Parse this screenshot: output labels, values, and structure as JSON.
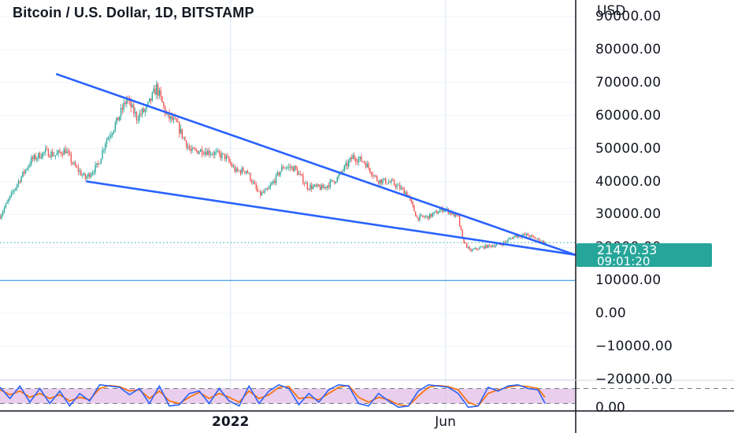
{
  "header": {
    "title": "Bitcoin / U.S. Dollar, 1D, BITSTAMP"
  },
  "axis": {
    "unit": "USD"
  },
  "last_price": {
    "value": "21470.33",
    "countdown": "09:01:20"
  },
  "oscillator": {
    "axis_label": "0.00"
  },
  "colors": {
    "up": "#26a69a",
    "down": "#ef5350",
    "trendline": "#2962ff",
    "stoch_k": "#2962ff",
    "stoch_d": "#ff6d00",
    "band": "#e1bee7"
  },
  "chart_data": {
    "type": "candlestick",
    "title": "Bitcoin / U.S. Dollar, 1D, BITSTAMP",
    "ylabel": "USD",
    "ylim": [
      -20000,
      95000
    ],
    "y_ticks": [
      "90000.00",
      "80000.00",
      "70000.00",
      "60000.00",
      "50000.00",
      "40000.00",
      "30000.00",
      "20000.00",
      "10000.00",
      "0.00",
      "−10000.00",
      "−20000.00"
    ],
    "y_tick_values": [
      90000,
      80000,
      70000,
      60000,
      50000,
      40000,
      30000,
      20000,
      10000,
      0,
      -10000,
      -20000
    ],
    "x_ticks": [
      {
        "label": "2022",
        "date": "2022-01-01",
        "bold": true
      },
      {
        "label": "Jun",
        "date": "2022-06-01",
        "bold": false
      }
    ],
    "x_range": [
      "2021-07-23",
      "2022-08-31"
    ],
    "close_series": [
      [
        "2021-07-23",
        29500
      ],
      [
        "2021-08-05",
        40000
      ],
      [
        "2021-08-14",
        46500
      ],
      [
        "2021-08-24",
        49000
      ],
      [
        "2021-08-31",
        48000
      ],
      [
        "2021-09-07",
        49500
      ],
      [
        "2021-09-13",
        44800
      ],
      [
        "2021-09-21",
        41000
      ],
      [
        "2021-09-30",
        45000
      ],
      [
        "2021-10-05",
        52000
      ],
      [
        "2021-10-13",
        58000
      ],
      [
        "2021-10-20",
        65000
      ],
      [
        "2021-10-27",
        59500
      ],
      [
        "2021-11-03",
        62000
      ],
      [
        "2021-11-10",
        68500
      ],
      [
        "2021-11-17",
        60000
      ],
      [
        "2021-11-24",
        57500
      ],
      [
        "2021-12-04",
        49000
      ],
      [
        "2021-12-12",
        49500
      ],
      [
        "2021-12-21",
        48500
      ],
      [
        "2021-12-28",
        47500
      ],
      [
        "2022-01-05",
        43000
      ],
      [
        "2022-01-12",
        43500
      ],
      [
        "2022-01-21",
        36000
      ],
      [
        "2022-01-27",
        37200
      ],
      [
        "2022-02-07",
        44500
      ],
      [
        "2022-02-15",
        44000
      ],
      [
        "2022-02-24",
        38500
      ],
      [
        "2022-03-07",
        38000
      ],
      [
        "2022-03-17",
        41000
      ],
      [
        "2022-03-28",
        47500
      ],
      [
        "2022-04-05",
        46000
      ],
      [
        "2022-04-14",
        40500
      ],
      [
        "2022-04-25",
        39500
      ],
      [
        "2022-05-05",
        36500
      ],
      [
        "2022-05-12",
        29000
      ],
      [
        "2022-05-20",
        29300
      ],
      [
        "2022-05-31",
        31800
      ],
      [
        "2022-06-10",
        29000
      ],
      [
        "2022-06-13",
        22500
      ],
      [
        "2022-06-18",
        19000
      ],
      [
        "2022-06-28",
        20200
      ],
      [
        "2022-07-10",
        21000
      ],
      [
        "2022-07-20",
        23500
      ],
      [
        "2022-07-28",
        23800
      ],
      [
        "2022-08-04",
        22600
      ],
      [
        "2022-08-10",
        21470
      ]
    ],
    "last_price": 21470.33,
    "horizontal_line": 10000,
    "trendlines": [
      {
        "start": [
          "2021-09-01",
          72500
        ],
        "end": [
          "2022-08-31",
          17800
        ]
      },
      {
        "start": [
          "2021-09-22",
          40000
        ],
        "end": [
          "2022-08-31",
          17800
        ]
      }
    ],
    "oscillator": {
      "type": "stochastic_rsi",
      "ylim": [
        -10,
        110
      ],
      "band": [
        20,
        80
      ],
      "k": [
        [
          "2021-07-23",
          85
        ],
        [
          "2021-07-30",
          40
        ],
        [
          "2021-08-06",
          90
        ],
        [
          "2021-08-13",
          25
        ],
        [
          "2021-08-20",
          80
        ],
        [
          "2021-08-27",
          20
        ],
        [
          "2021-09-03",
          70
        ],
        [
          "2021-09-10",
          10
        ],
        [
          "2021-09-17",
          60
        ],
        [
          "2021-09-24",
          30
        ],
        [
          "2021-10-01",
          95
        ],
        [
          "2021-10-08",
          90
        ],
        [
          "2021-10-15",
          85
        ],
        [
          "2021-10-22",
          55
        ],
        [
          "2021-10-29",
          80
        ],
        [
          "2021-11-05",
          20
        ],
        [
          "2021-11-12",
          90
        ],
        [
          "2021-11-19",
          10
        ],
        [
          "2021-11-26",
          15
        ],
        [
          "2021-12-03",
          60
        ],
        [
          "2021-12-10",
          70
        ],
        [
          "2021-12-17",
          20
        ],
        [
          "2021-12-24",
          80
        ],
        [
          "2021-12-31",
          30
        ],
        [
          "2022-01-07",
          10
        ],
        [
          "2022-01-14",
          90
        ],
        [
          "2022-01-21",
          20
        ],
        [
          "2022-01-28",
          70
        ],
        [
          "2022-02-04",
          95
        ],
        [
          "2022-02-11",
          80
        ],
        [
          "2022-02-18",
          15
        ],
        [
          "2022-02-25",
          60
        ],
        [
          "2022-03-04",
          25
        ],
        [
          "2022-03-11",
          75
        ],
        [
          "2022-03-18",
          95
        ],
        [
          "2022-03-25",
          90
        ],
        [
          "2022-04-01",
          20
        ],
        [
          "2022-04-08",
          10
        ],
        [
          "2022-04-15",
          60
        ],
        [
          "2022-04-22",
          30
        ],
        [
          "2022-04-29",
          5
        ],
        [
          "2022-05-06",
          10
        ],
        [
          "2022-05-13",
          70
        ],
        [
          "2022-05-20",
          95
        ],
        [
          "2022-05-27",
          90
        ],
        [
          "2022-06-03",
          85
        ],
        [
          "2022-06-10",
          60
        ],
        [
          "2022-06-17",
          5
        ],
        [
          "2022-06-24",
          10
        ],
        [
          "2022-07-01",
          85
        ],
        [
          "2022-07-08",
          70
        ],
        [
          "2022-07-15",
          90
        ],
        [
          "2022-07-22",
          95
        ],
        [
          "2022-07-29",
          80
        ],
        [
          "2022-08-05",
          75
        ],
        [
          "2022-08-10",
          20
        ]
      ],
      "d": [
        [
          "2021-07-23",
          75
        ],
        [
          "2021-07-30",
          55
        ],
        [
          "2021-08-06",
          70
        ],
        [
          "2021-08-13",
          45
        ],
        [
          "2021-08-20",
          60
        ],
        [
          "2021-08-27",
          40
        ],
        [
          "2021-09-03",
          55
        ],
        [
          "2021-09-10",
          30
        ],
        [
          "2021-09-17",
          45
        ],
        [
          "2021-09-24",
          35
        ],
        [
          "2021-10-01",
          80
        ],
        [
          "2021-10-08",
          92
        ],
        [
          "2021-10-15",
          88
        ],
        [
          "2021-10-22",
          70
        ],
        [
          "2021-10-29",
          75
        ],
        [
          "2021-11-05",
          40
        ],
        [
          "2021-11-12",
          70
        ],
        [
          "2021-11-19",
          30
        ],
        [
          "2021-11-26",
          20
        ],
        [
          "2021-12-03",
          45
        ],
        [
          "2021-12-10",
          65
        ],
        [
          "2021-12-17",
          40
        ],
        [
          "2021-12-24",
          60
        ],
        [
          "2021-12-31",
          45
        ],
        [
          "2022-01-07",
          25
        ],
        [
          "2022-01-14",
          70
        ],
        [
          "2022-01-21",
          40
        ],
        [
          "2022-01-28",
          55
        ],
        [
          "2022-02-04",
          85
        ],
        [
          "2022-02-11",
          88
        ],
        [
          "2022-02-18",
          40
        ],
        [
          "2022-02-25",
          45
        ],
        [
          "2022-03-04",
          35
        ],
        [
          "2022-03-11",
          60
        ],
        [
          "2022-03-18",
          85
        ],
        [
          "2022-03-25",
          92
        ],
        [
          "2022-04-01",
          45
        ],
        [
          "2022-04-08",
          25
        ],
        [
          "2022-04-15",
          45
        ],
        [
          "2022-04-22",
          35
        ],
        [
          "2022-04-29",
          15
        ],
        [
          "2022-05-06",
          10
        ],
        [
          "2022-05-13",
          50
        ],
        [
          "2022-05-20",
          85
        ],
        [
          "2022-05-27",
          92
        ],
        [
          "2022-06-03",
          88
        ],
        [
          "2022-06-10",
          75
        ],
        [
          "2022-06-17",
          25
        ],
        [
          "2022-06-24",
          10
        ],
        [
          "2022-07-01",
          60
        ],
        [
          "2022-07-08",
          75
        ],
        [
          "2022-07-15",
          85
        ],
        [
          "2022-07-22",
          92
        ],
        [
          "2022-07-29",
          88
        ],
        [
          "2022-08-05",
          80
        ],
        [
          "2022-08-10",
          45
        ]
      ]
    }
  }
}
